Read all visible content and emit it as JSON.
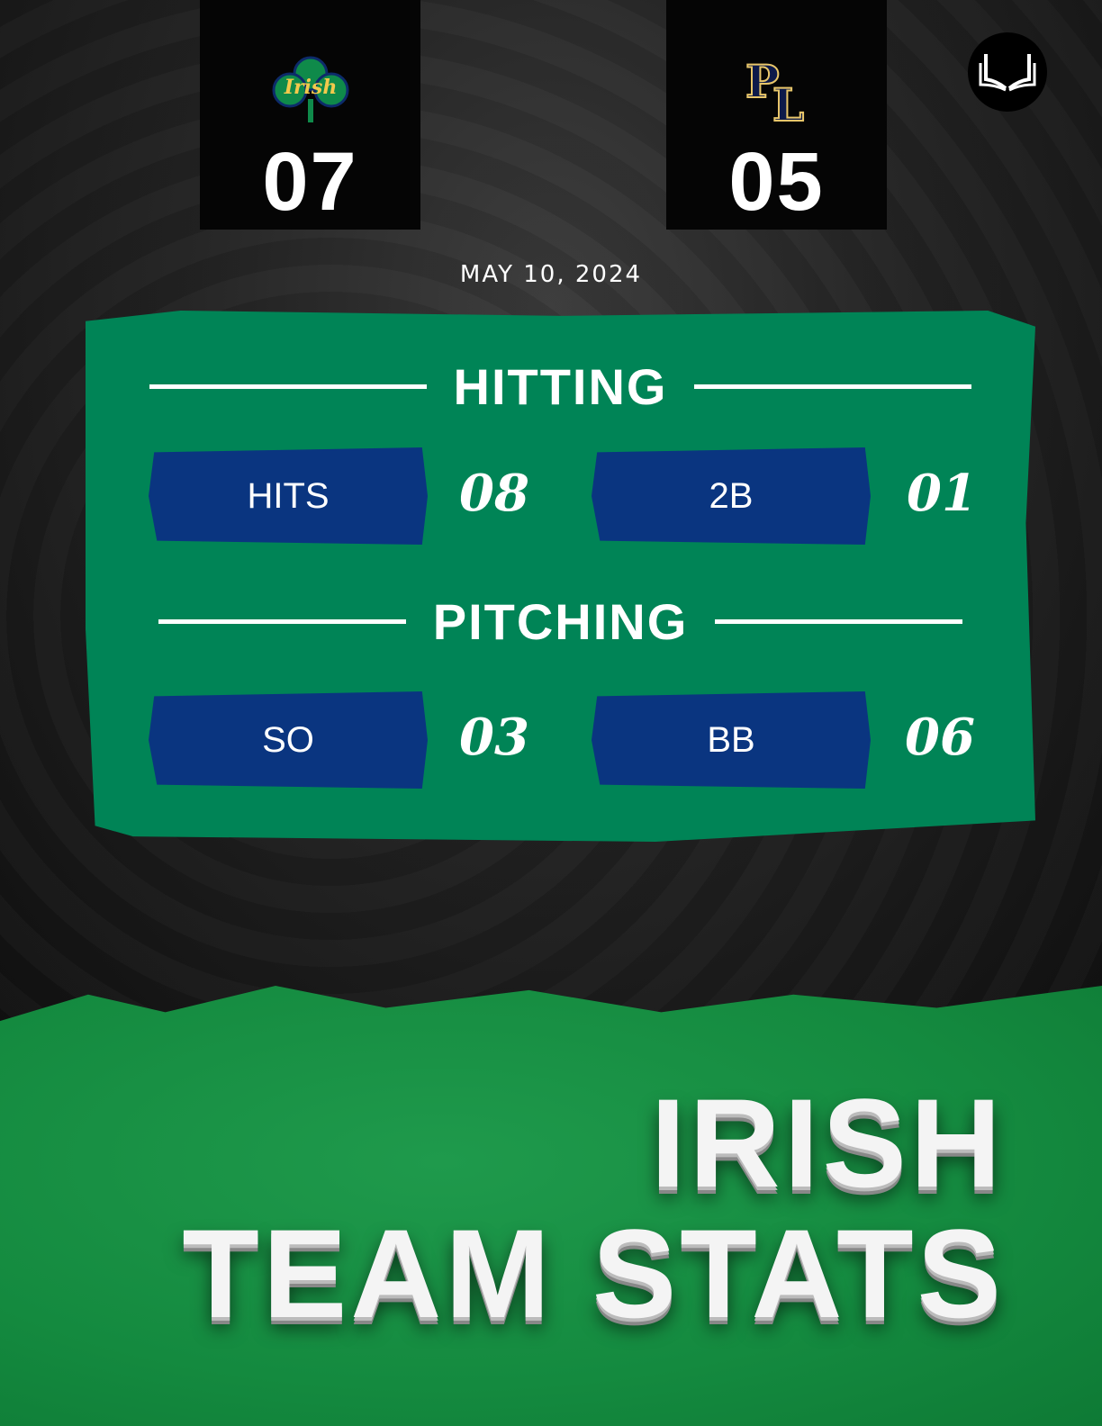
{
  "home": {
    "name": "Irish",
    "score": "07",
    "logo_text": "Irish",
    "logo_color": "#0f8a4a"
  },
  "away": {
    "name": "PL",
    "score": "05",
    "logo_text": "PL",
    "logo_color": "#0d1a4a"
  },
  "brand_icon": "open-book-icon",
  "date": "MAY 10, 2024",
  "colors": {
    "panel": "#008456",
    "stat_bar": "#0a3580",
    "turf": "#148a3f"
  },
  "hitting": {
    "title": "HITTING",
    "stats": [
      {
        "label": "HITS",
        "value": "08"
      },
      {
        "label": "2B",
        "value": "01"
      }
    ]
  },
  "pitching": {
    "title": "PITCHING",
    "stats": [
      {
        "label": "SO",
        "value": "03"
      },
      {
        "label": "BB",
        "value": "06"
      }
    ]
  },
  "headline": {
    "line1": "IRISH",
    "line2": "TEAM STATS"
  }
}
